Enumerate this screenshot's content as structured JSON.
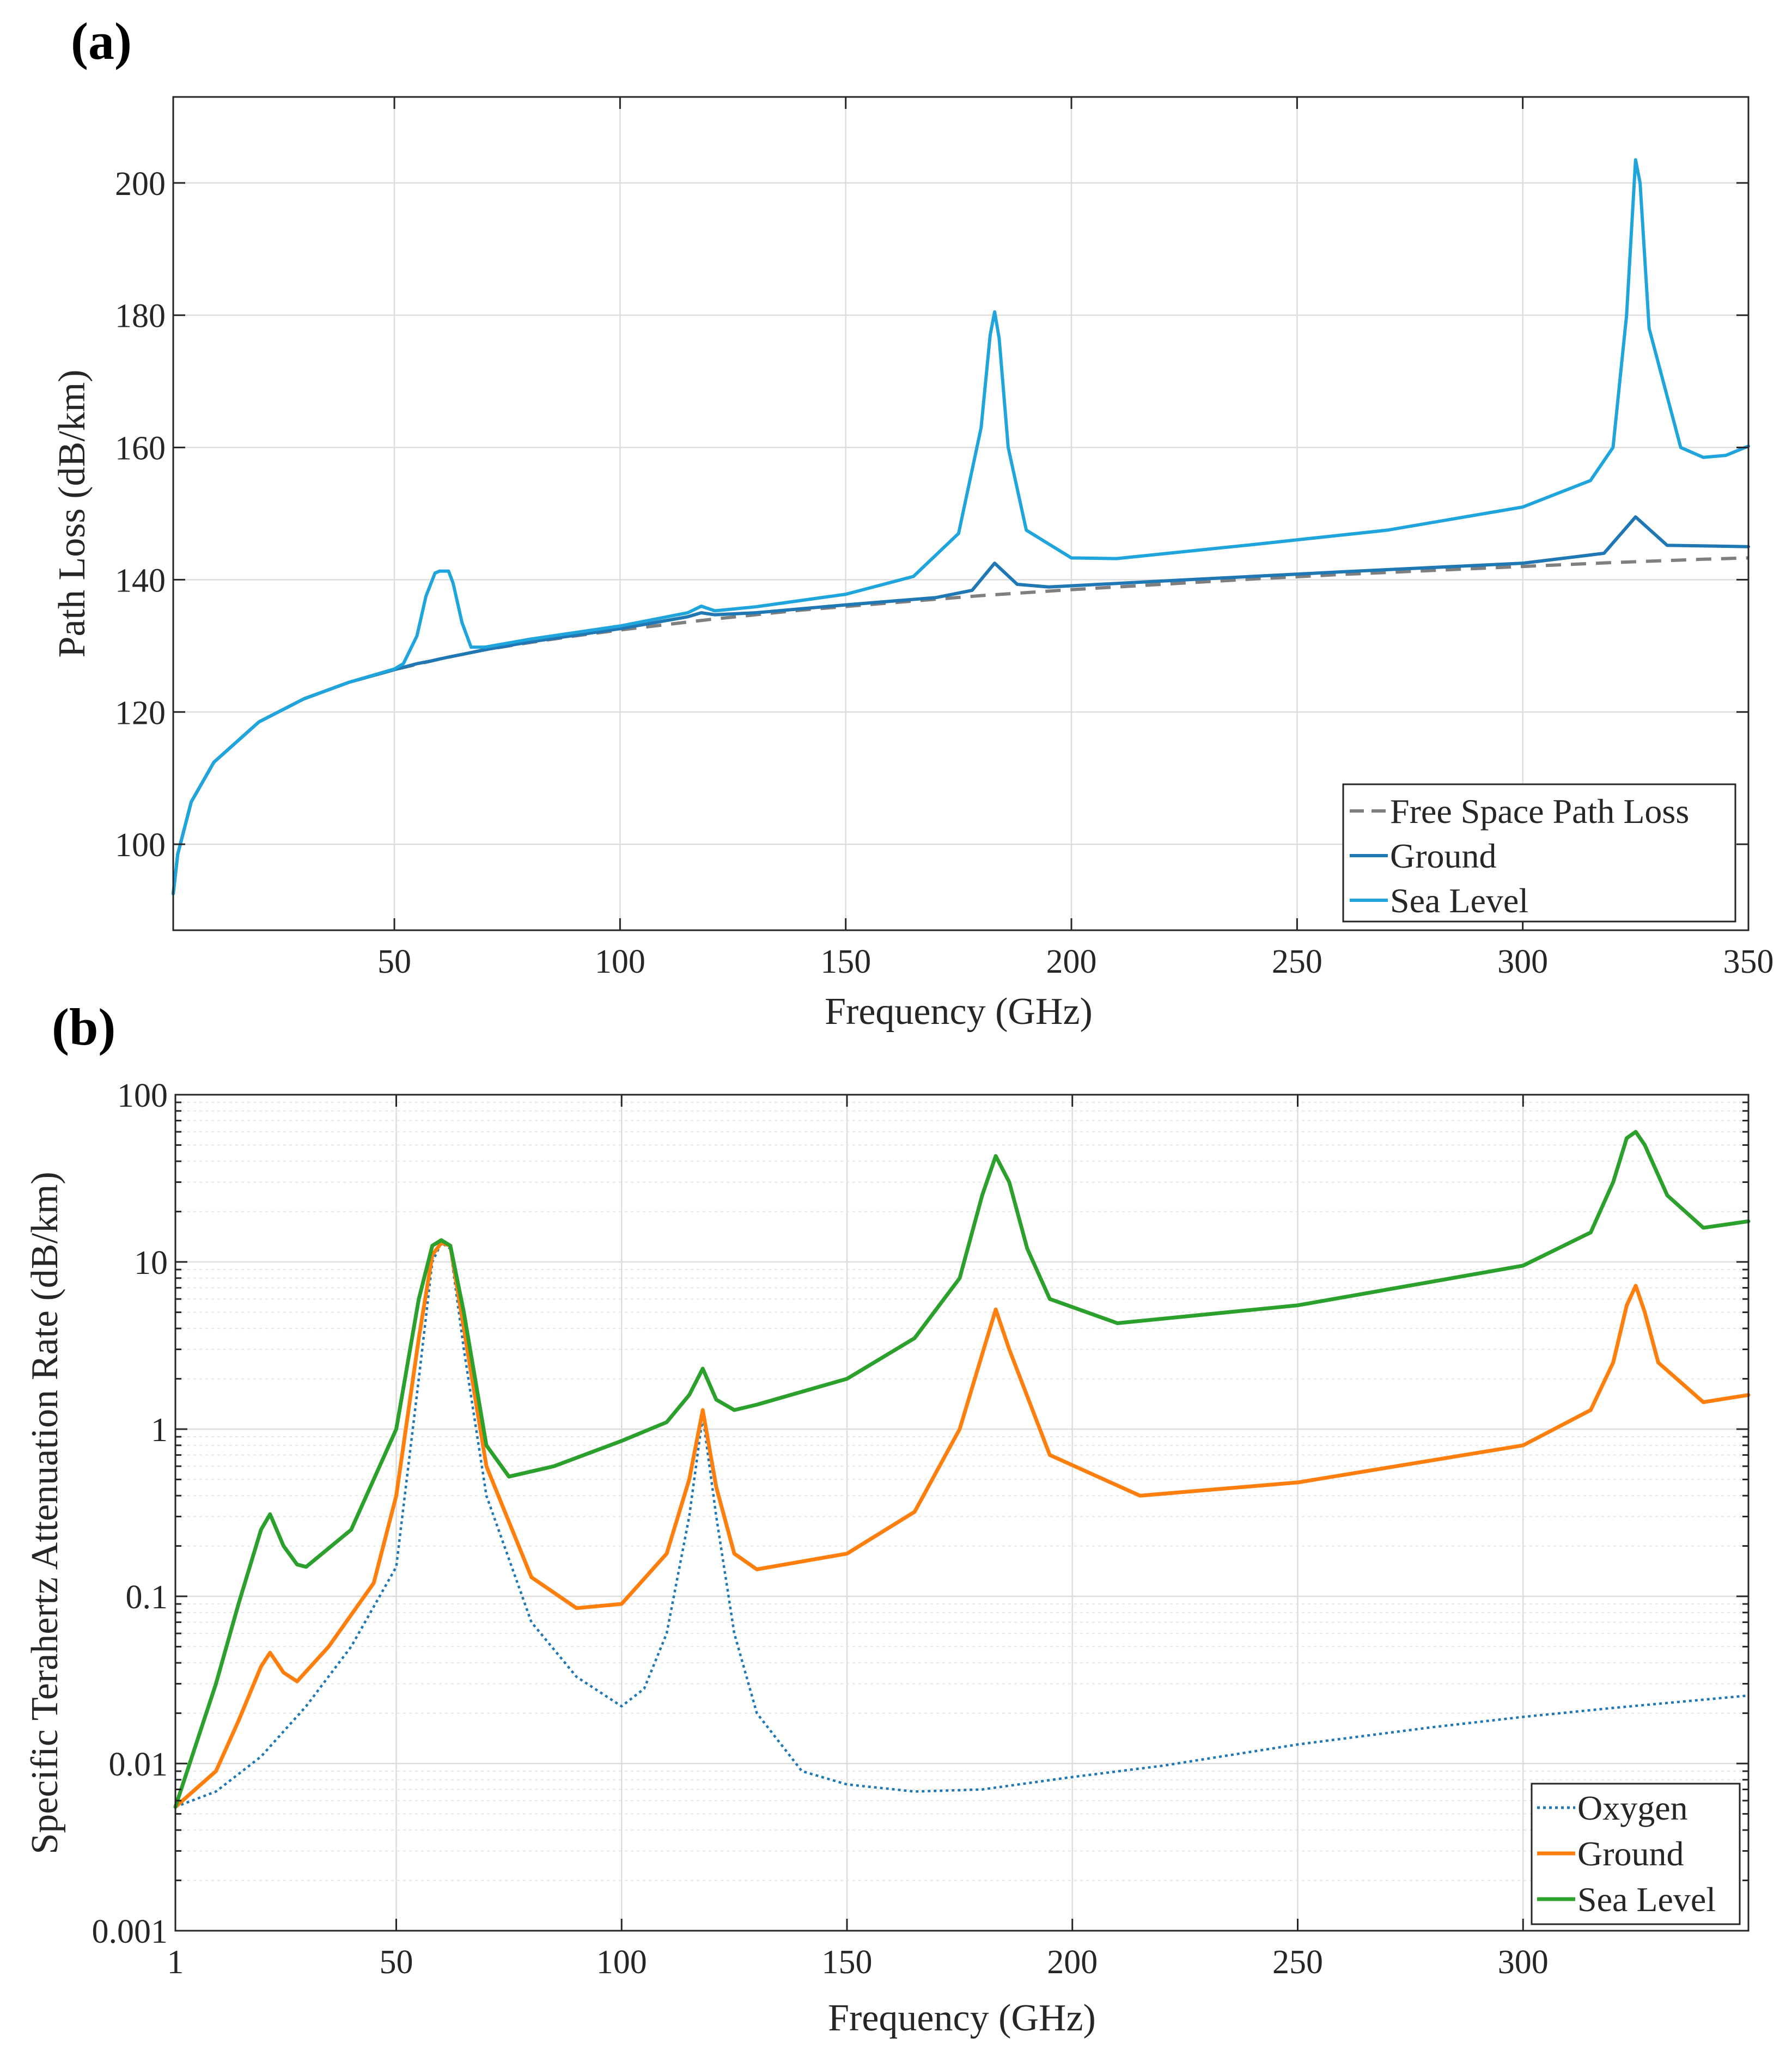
{
  "chart_data": [
    {
      "panel": "(a)",
      "type": "line",
      "title": "",
      "xlabel": "Frequency (GHz)",
      "ylabel": "Path Loss (dB/km)",
      "xlim": [
        1,
        350
      ],
      "ylim": [
        87,
        213
      ],
      "xticks": [
        50,
        100,
        150,
        200,
        250,
        300,
        350
      ],
      "yticks": [
        100,
        120,
        140,
        160,
        180,
        200
      ],
      "grid": true,
      "legend_position": "bottom-right",
      "series": [
        {
          "name": "Free Space Path Loss",
          "color": "#7f7f7f",
          "style": "dashed",
          "x": [
            1,
            2,
            5,
            10,
            20,
            30,
            40,
            50,
            60,
            70,
            80,
            90,
            100,
            120,
            140,
            160,
            180,
            200,
            220,
            240,
            260,
            280,
            300,
            320,
            340,
            350
          ],
          "y": [
            92.5,
            98.5,
            106.4,
            112.4,
            118.5,
            122.0,
            124.5,
            126.4,
            128.0,
            129.4,
            130.5,
            131.5,
            132.4,
            134.0,
            135.4,
            136.5,
            137.6,
            138.5,
            139.3,
            140.1,
            140.8,
            141.4,
            142.0,
            142.6,
            143.1,
            143.3
          ]
        },
        {
          "name": "Ground",
          "color": "#1f77b4",
          "style": "solid",
          "x": [
            1,
            2,
            5,
            10,
            20,
            30,
            40,
            50,
            55,
            58,
            60,
            62,
            65,
            70,
            80,
            100,
            115,
            118,
            121,
            130,
            150,
            170,
            178,
            183,
            188,
            195,
            220,
            260,
            300,
            318,
            325,
            332,
            350
          ],
          "y": [
            92.5,
            98.5,
            106.4,
            112.4,
            118.5,
            122.0,
            124.5,
            126.4,
            127.3,
            127.7,
            128.0,
            128.3,
            128.7,
            129.4,
            130.6,
            132.6,
            134.4,
            135.0,
            134.7,
            135.0,
            136.2,
            137.3,
            138.4,
            142.5,
            139.3,
            138.9,
            139.8,
            141.2,
            142.5,
            144.0,
            149.5,
            145.2,
            145.0
          ]
        },
        {
          "name": "Sea Level",
          "color": "#1fa5dc",
          "style": "solid",
          "x": [
            1,
            2,
            5,
            10,
            20,
            30,
            40,
            50,
            52,
            55,
            57,
            59,
            60,
            62,
            63,
            65,
            67,
            70,
            80,
            100,
            115,
            118,
            121,
            130,
            150,
            165,
            175,
            180,
            182,
            183,
            184,
            186,
            190,
            200,
            210,
            240,
            270,
            300,
            315,
            320,
            323,
            325,
            326,
            328,
            335,
            340,
            345,
            350
          ],
          "y": [
            92.5,
            98.5,
            106.4,
            112.4,
            118.5,
            122.0,
            124.5,
            126.5,
            127.3,
            131.5,
            137.5,
            141.0,
            141.3,
            141.3,
            139.5,
            133.5,
            129.8,
            129.8,
            131.0,
            133.0,
            135.0,
            136.0,
            135.3,
            135.9,
            137.8,
            140.5,
            147.0,
            163.0,
            177.0,
            180.5,
            176.5,
            160.0,
            147.5,
            143.3,
            143.2,
            145.3,
            147.5,
            151.0,
            155.0,
            160.0,
            180.0,
            203.5,
            200.0,
            178.0,
            160.0,
            158.5,
            158.8,
            160.2
          ]
        }
      ]
    },
    {
      "panel": "(b)",
      "type": "line",
      "yscale": "log",
      "title": "",
      "xlabel": "Frequency (GHz)",
      "ylabel": "Specific Terahertz Attenuation Rate (dB/km)",
      "xlim": [
        1,
        350
      ],
      "ylim": [
        0.001,
        100
      ],
      "xticks": [
        1,
        50,
        100,
        150,
        200,
        250,
        300
      ],
      "ytick_labels": [
        "0.001",
        "0.01",
        "0.1",
        "1",
        "10",
        "100"
      ],
      "grid": true,
      "legend_position": "bottom-right",
      "series": [
        {
          "name": "Oxygen",
          "color": "#1f77b4",
          "style": "dotted",
          "x": [
            1,
            10,
            20,
            30,
            40,
            50,
            55,
            58,
            60,
            62,
            65,
            70,
            80,
            90,
            100,
            105,
            110,
            115,
            118,
            121,
            125,
            130,
            140,
            150,
            165,
            180,
            200,
            220,
            250,
            280,
            300,
            320,
            350
          ],
          "y": [
            0.0055,
            0.0068,
            0.011,
            0.022,
            0.05,
            0.15,
            2.0,
            10.0,
            13.0,
            12.0,
            3.0,
            0.4,
            0.07,
            0.033,
            0.022,
            0.028,
            0.06,
            0.3,
            1.2,
            0.3,
            0.06,
            0.02,
            0.009,
            0.0075,
            0.0068,
            0.007,
            0.0083,
            0.0097,
            0.013,
            0.0165,
            0.019,
            0.0215,
            0.0255
          ]
        },
        {
          "name": "Ground",
          "color": "#ff7f0e",
          "style": "solid",
          "x": [
            1,
            10,
            15,
            20,
            22,
            25,
            28,
            35,
            45,
            50,
            55,
            58,
            60,
            62,
            65,
            70,
            80,
            90,
            100,
            110,
            115,
            118,
            121,
            125,
            130,
            150,
            165,
            175,
            180,
            183,
            186,
            195,
            215,
            250,
            300,
            315,
            320,
            323,
            325,
            327,
            330,
            340,
            350
          ],
          "y": [
            0.0055,
            0.009,
            0.018,
            0.038,
            0.046,
            0.035,
            0.031,
            0.05,
            0.12,
            0.4,
            3.5,
            11.0,
            13.0,
            12.5,
            4.0,
            0.6,
            0.13,
            0.085,
            0.09,
            0.18,
            0.5,
            1.3,
            0.45,
            0.18,
            0.145,
            0.18,
            0.32,
            1.0,
            2.8,
            5.2,
            3.0,
            0.7,
            0.4,
            0.48,
            0.8,
            1.3,
            2.5,
            5.5,
            7.2,
            5.0,
            2.5,
            1.45,
            1.6
          ]
        },
        {
          "name": "Sea Level",
          "color": "#2ca02c",
          "style": "solid",
          "x": [
            1,
            10,
            15,
            20,
            22,
            25,
            28,
            30,
            40,
            50,
            55,
            58,
            60,
            62,
            65,
            70,
            75,
            85,
            100,
            110,
            115,
            118,
            121,
            125,
            130,
            150,
            165,
            175,
            180,
            183,
            186,
            190,
            195,
            210,
            250,
            300,
            315,
            320,
            323,
            325,
            327,
            332,
            340,
            350
          ],
          "y": [
            0.0055,
            0.03,
            0.09,
            0.25,
            0.31,
            0.2,
            0.155,
            0.15,
            0.25,
            1.0,
            6.0,
            12.5,
            13.5,
            12.5,
            5.0,
            0.8,
            0.52,
            0.6,
            0.85,
            1.1,
            1.6,
            2.3,
            1.5,
            1.3,
            1.4,
            2.0,
            3.5,
            8.0,
            25.0,
            43.0,
            30.0,
            12.0,
            6.0,
            4.3,
            5.5,
            9.5,
            15.0,
            30.0,
            55.0,
            60.0,
            50.0,
            25.0,
            16.0,
            17.5
          ]
        }
      ]
    }
  ]
}
